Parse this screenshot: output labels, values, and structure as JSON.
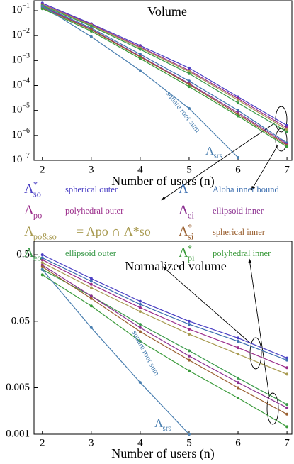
{
  "chart_data": [
    {
      "type": "line",
      "title": "Volume",
      "xlabel": "Number of users (n)",
      "log_y": true,
      "x": [
        2,
        3,
        4,
        5,
        6,
        7
      ],
      "xlim": [
        1.83,
        7.1
      ],
      "xticks": [
        2,
        3,
        4,
        5,
        6,
        7
      ],
      "ylim": [
        1e-07,
        0.25
      ],
      "yticks": [
        {
          "value": 1e-07,
          "label": "10",
          "exp": "−7"
        },
        {
          "value": 1e-06,
          "label": "10",
          "exp": "−6"
        },
        {
          "value": 1e-05,
          "label": "10",
          "exp": "−5"
        },
        {
          "value": 0.0001,
          "label": "10",
          "exp": "−4"
        },
        {
          "value": 0.001,
          "label": "10",
          "exp": "−3"
        },
        {
          "value": 0.01,
          "label": "10",
          "exp": "−2"
        },
        {
          "value": 0.1,
          "label": "10",
          "exp": "−1"
        }
      ],
      "series": [
        {
          "name": "spherical outer",
          "symbol": "Λ",
          "sup": "*",
          "sub": "so",
          "color": "#4a3fc4",
          "values": [
            0.2,
            0.03,
            0.004,
            0.0005,
            3.5e-05,
            2.5e-06
          ]
        },
        {
          "name": "polyhedral outer",
          "symbol": "Λ",
          "sub": "po",
          "color": "#9b2d8b",
          "values": [
            0.18,
            0.028,
            0.0035,
            0.0004,
            3e-05,
            2e-06
          ]
        },
        {
          "symbol": "Λ",
          "sub": "po&so",
          "definition": "= Λpo ∩ Λ*so",
          "color": "#a89a50",
          "values": [
            0.17,
            0.026,
            0.0032,
            0.00036,
            2.6e-05,
            1.7e-06
          ]
        },
        {
          "name": "ellipsoid outer",
          "symbol": "Λ",
          "sub": "eo",
          "color": "#3a9a4a",
          "values": [
            0.16,
            0.024,
            0.0028,
            0.0003,
            2e-05,
            1.4e-06
          ]
        },
        {
          "name": "Aloha inner bound",
          "symbol": "Λ",
          "color": "#3d6fb0",
          "values": [
            0.15,
            0.02,
            0.0018,
            0.00015,
            1e-05,
            5e-07
          ]
        },
        {
          "name": "ellipsoid inner",
          "symbol": "Λ",
          "sub": "ei",
          "color": "#8b3090",
          "values": [
            0.14,
            0.018,
            0.0015,
            0.00012,
            8e-06,
            4.5e-07
          ]
        },
        {
          "name": "spherical inner",
          "symbol": "Λ",
          "sup": "*",
          "sub": "si",
          "color": "#9a6030",
          "values": [
            0.13,
            0.017,
            0.0014,
            0.00011,
            7e-06,
            4e-07
          ]
        },
        {
          "name": "polyhedral inner",
          "symbol": "Λ",
          "sup": "*",
          "sub": "pi",
          "color": "#3a9a3a",
          "values": [
            0.12,
            0.015,
            0.0012,
            9e-05,
            6e-06,
            3.5e-07
          ]
        }
      ],
      "reference_series": {
        "label": "square root sum",
        "symbol": "Λ",
        "sub": "srs",
        "color": "#4a7fb0",
        "values": [
          0.15,
          0.009,
          0.0004,
          1.2e-05,
          1.3e-07,
          null
        ]
      }
    },
    {
      "type": "line",
      "title": "Normalized volume",
      "xlabel": "Number of users (n)",
      "log_y": true,
      "x": [
        2,
        3,
        4,
        5,
        6,
        7
      ],
      "xlim": [
        1.83,
        7.1
      ],
      "xticks": [
        2,
        3,
        4,
        5,
        6,
        7
      ],
      "ylim": [
        0.001,
        0.8
      ],
      "yticks": [
        0.001,
        0.005,
        0.05,
        0.5
      ],
      "series": [
        {
          "name": "spherical outer",
          "color": "#4a3fc4",
          "values": [
            0.5,
            0.22,
            0.1,
            0.05,
            0.028,
            0.014
          ]
        },
        {
          "name": "polyhedral outer",
          "color": "#9b2d8b",
          "values": [
            0.42,
            0.18,
            0.08,
            0.038,
            0.02,
            0.01
          ]
        },
        {
          "color": "#a89a50",
          "values": [
            0.38,
            0.16,
            0.07,
            0.032,
            0.016,
            0.008
          ]
        },
        {
          "name": "ellipsoid outer",
          "color": "#3a9a4a",
          "values": [
            0.3,
            0.12,
            0.045,
            0.018,
            0.007,
            0.0028
          ]
        },
        {
          "name": "Aloha inner bound",
          "color": "#3d6fb0",
          "values": [
            0.45,
            0.2,
            0.09,
            0.045,
            0.025,
            0.013
          ]
        },
        {
          "name": "ellipsoid inner",
          "color": "#8b3090",
          "values": [
            0.35,
            0.12,
            0.04,
            0.015,
            0.006,
            0.0025
          ]
        },
        {
          "name": "spherical inner",
          "color": "#9a6030",
          "values": [
            0.33,
            0.11,
            0.035,
            0.013,
            0.005,
            0.002
          ]
        },
        {
          "name": "polyhedral inner",
          "color": "#3a9a3a",
          "values": [
            0.25,
            0.085,
            0.025,
            0.009,
            0.0035,
            0.0013
          ]
        }
      ],
      "reference_series": {
        "label": "square root sum",
        "symbol": "Λ",
        "sub": "srs",
        "color": "#4a7fb0",
        "values": [
          0.3,
          0.04,
          0.006,
          0.001,
          null,
          null
        ]
      }
    }
  ]
}
